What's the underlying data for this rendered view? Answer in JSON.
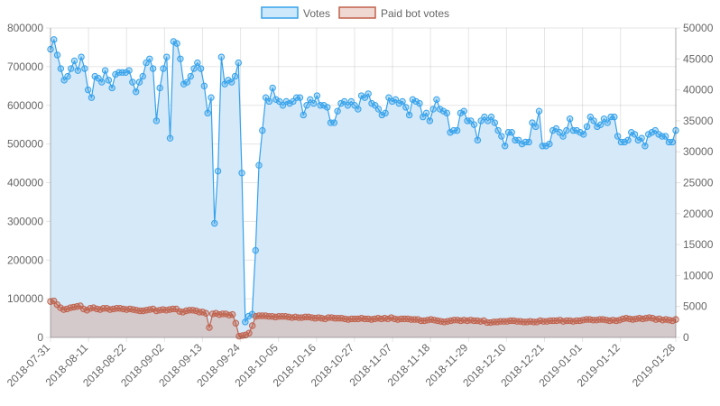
{
  "chart_data": {
    "type": "line",
    "legend_position": "top",
    "grid": true,
    "x_tick_labels": [
      "2018-07-31",
      "2018-08-11",
      "2018-08-22",
      "2018-09-02",
      "2018-09-13",
      "2018-09-24",
      "2018-10-05",
      "2018-10-16",
      "2018-10-27",
      "2018-11-07",
      "2018-11-18",
      "2018-11-29",
      "2018-12-10",
      "2018-12-21",
      "2019-01-01",
      "2019-01-12",
      "2019-01-28"
    ],
    "x_start": "2018-07-31",
    "x_end": "2019-01-28",
    "y_left": {
      "min": 0,
      "max": 800000,
      "ticks": [
        "0",
        "100000",
        "200000",
        "300000",
        "400000",
        "500000",
        "600000",
        "700000",
        "800000"
      ]
    },
    "y_right": {
      "min": 0,
      "max": 50000,
      "ticks": [
        "0",
        "5000",
        "10000",
        "15000",
        "20000",
        "25000",
        "30000",
        "35000",
        "40000",
        "45000",
        "50000"
      ]
    },
    "series": [
      {
        "name": "Votes",
        "axis": "left",
        "color": "#36a2eb",
        "fill": "#d6e9f8",
        "values": [
          745000,
          770000,
          730000,
          695000,
          665000,
          675000,
          695000,
          715000,
          690000,
          725000,
          695000,
          640000,
          620000,
          675000,
          670000,
          660000,
          690000,
          665000,
          645000,
          680000,
          685000,
          685000,
          685000,
          690000,
          660000,
          635000,
          660000,
          675000,
          710000,
          720000,
          695000,
          560000,
          645000,
          695000,
          725000,
          515000,
          765000,
          760000,
          720000,
          655000,
          660000,
          675000,
          695000,
          710000,
          695000,
          650000,
          580000,
          620000,
          295000,
          430000,
          725000,
          655000,
          665000,
          660000,
          675000,
          710000,
          425000,
          40000,
          55000,
          60000,
          225000,
          445000,
          535000,
          620000,
          610000,
          645000,
          615000,
          610000,
          600000,
          610000,
          605000,
          610000,
          620000,
          620000,
          575000,
          600000,
          615000,
          605000,
          625000,
          600000,
          600000,
          595000,
          555000,
          555000,
          585000,
          605000,
          610000,
          600000,
          610000,
          600000,
          590000,
          625000,
          620000,
          630000,
          605000,
          600000,
          590000,
          575000,
          580000,
          620000,
          610000,
          615000,
          605000,
          610000,
          595000,
          575000,
          615000,
          610000,
          605000,
          570000,
          580000,
          560000,
          590000,
          615000,
          590000,
          585000,
          580000,
          530000,
          535000,
          535000,
          580000,
          585000,
          560000,
          560000,
          550000,
          510000,
          560000,
          570000,
          560000,
          570000,
          555000,
          535000,
          520000,
          495000,
          530000,
          530000,
          510000,
          510000,
          500000,
          505000,
          505000,
          555000,
          545000,
          585000,
          495000,
          495000,
          500000,
          535000,
          540000,
          530000,
          520000,
          535000,
          565000,
          535000,
          535000,
          530000,
          525000,
          545000,
          570000,
          560000,
          545000,
          550000,
          565000,
          555000,
          570000,
          570000,
          520000,
          505000,
          505000,
          510000,
          530000,
          525000,
          510000,
          515000,
          495000,
          525000,
          530000,
          535000,
          525000,
          520000,
          520000,
          505000,
          505000,
          535000
        ]
      },
      {
        "name": "Paid bot votes",
        "axis": "right",
        "color": "#c0614b",
        "fill": "#d3c4c4",
        "values": [
          5800,
          5900,
          5300,
          4800,
          4500,
          4600,
          4800,
          4900,
          5000,
          5100,
          4600,
          4400,
          4700,
          4800,
          4600,
          4500,
          4700,
          4700,
          4500,
          4600,
          4700,
          4700,
          4600,
          4500,
          4600,
          4500,
          4400,
          4300,
          4300,
          4400,
          4500,
          4600,
          4300,
          4400,
          4500,
          4400,
          4500,
          4600,
          4600,
          4200,
          4100,
          4300,
          4400,
          4400,
          4300,
          4100,
          4100,
          3900,
          1600,
          3800,
          3900,
          3700,
          3800,
          3800,
          3600,
          3700,
          2300,
          200,
          300,
          400,
          700,
          1900,
          3400,
          3500,
          3500,
          3500,
          3400,
          3400,
          3300,
          3400,
          3400,
          3400,
          3300,
          3200,
          3300,
          3200,
          3200,
          3300,
          3300,
          3200,
          3100,
          3200,
          3100,
          3000,
          3200,
          3200,
          3100,
          3100,
          3100,
          3000,
          2900,
          3000,
          3000,
          3000,
          3100,
          3000,
          3000,
          2900,
          3000,
          3100,
          3000,
          3100,
          3000,
          3200,
          3000,
          2900,
          3000,
          3000,
          3000,
          2900,
          2900,
          2900,
          2700,
          2700,
          2800,
          2900,
          2800,
          2700,
          2600,
          2500,
          2600,
          2700,
          2800,
          2800,
          2700,
          2800,
          2700,
          2800,
          2700,
          2700,
          2600,
          2700,
          2400,
          2400,
          2500,
          2500,
          2600,
          2600,
          2600,
          2700,
          2700,
          2600,
          2600,
          2500,
          2500,
          2600,
          2500,
          2500,
          2700,
          2600,
          2600,
          2700,
          2700,
          2700,
          2800,
          2600,
          2700,
          2700,
          2600,
          2700,
          2700,
          2800,
          2900,
          2900,
          2800,
          2800,
          2900,
          2900,
          2800,
          2700,
          2800,
          2700,
          2800,
          3000,
          3100,
          3000,
          2900,
          3000,
          3100,
          3000,
          3100,
          3200,
          3100,
          2900,
          3000,
          2800,
          2900,
          2800,
          2700,
          2900
        ]
      }
    ]
  }
}
